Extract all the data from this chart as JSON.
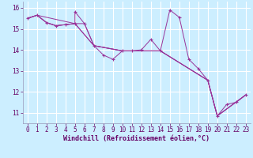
{
  "xlabel": "Windchill (Refroidissement éolien,°C)",
  "background_color": "#cceeff",
  "grid_color": "#ffffff",
  "line_color": "#993399",
  "marker_color": "#993399",
  "xlim": [
    -0.5,
    23.5
  ],
  "ylim": [
    10.5,
    16.3
  ],
  "yticks": [
    11,
    12,
    13,
    14,
    15,
    16
  ],
  "xticks": [
    0,
    1,
    2,
    3,
    4,
    5,
    6,
    7,
    8,
    9,
    10,
    11,
    12,
    13,
    14,
    15,
    16,
    17,
    18,
    19,
    20,
    21,
    22,
    23
  ],
  "main_series": [
    [
      0,
      15.5
    ],
    [
      1,
      15.65
    ],
    [
      2,
      15.3
    ],
    [
      3,
      15.15
    ],
    [
      4,
      15.2
    ],
    [
      5,
      15.25
    ],
    [
      5,
      15.82
    ],
    [
      6,
      15.25
    ],
    [
      7,
      14.2
    ],
    [
      8,
      13.75
    ],
    [
      9,
      13.55
    ],
    [
      10,
      13.95
    ],
    [
      11,
      13.95
    ],
    [
      12,
      14.0
    ],
    [
      13,
      14.5
    ],
    [
      14,
      13.95
    ],
    [
      15,
      15.9
    ],
    [
      16,
      15.55
    ],
    [
      17,
      13.55
    ],
    [
      18,
      13.1
    ],
    [
      19,
      12.55
    ],
    [
      20,
      10.85
    ],
    [
      21,
      11.4
    ],
    [
      22,
      11.5
    ],
    [
      23,
      11.85
    ]
  ],
  "extra_lines": [
    [
      [
        0,
        15.5
      ],
      [
        1,
        15.65
      ],
      [
        2,
        15.3
      ],
      [
        3,
        15.15
      ],
      [
        4,
        15.2
      ],
      [
        5,
        15.25
      ],
      [
        6,
        15.25
      ],
      [
        7,
        14.2
      ],
      [
        10,
        13.95
      ],
      [
        14,
        13.95
      ],
      [
        19,
        12.55
      ],
      [
        20,
        10.85
      ],
      [
        23,
        11.85
      ]
    ],
    [
      [
        0,
        15.5
      ],
      [
        1,
        15.65
      ],
      [
        2,
        15.3
      ],
      [
        3,
        15.15
      ],
      [
        5,
        15.25
      ],
      [
        7,
        14.2
      ],
      [
        10,
        13.95
      ],
      [
        14,
        13.95
      ],
      [
        19,
        12.55
      ],
      [
        20,
        10.85
      ],
      [
        23,
        11.85
      ]
    ],
    [
      [
        0,
        15.5
      ],
      [
        1,
        15.65
      ],
      [
        5,
        15.25
      ],
      [
        7,
        14.2
      ],
      [
        10,
        13.95
      ],
      [
        14,
        13.95
      ],
      [
        19,
        12.55
      ],
      [
        20,
        10.85
      ],
      [
        23,
        11.85
      ]
    ]
  ]
}
